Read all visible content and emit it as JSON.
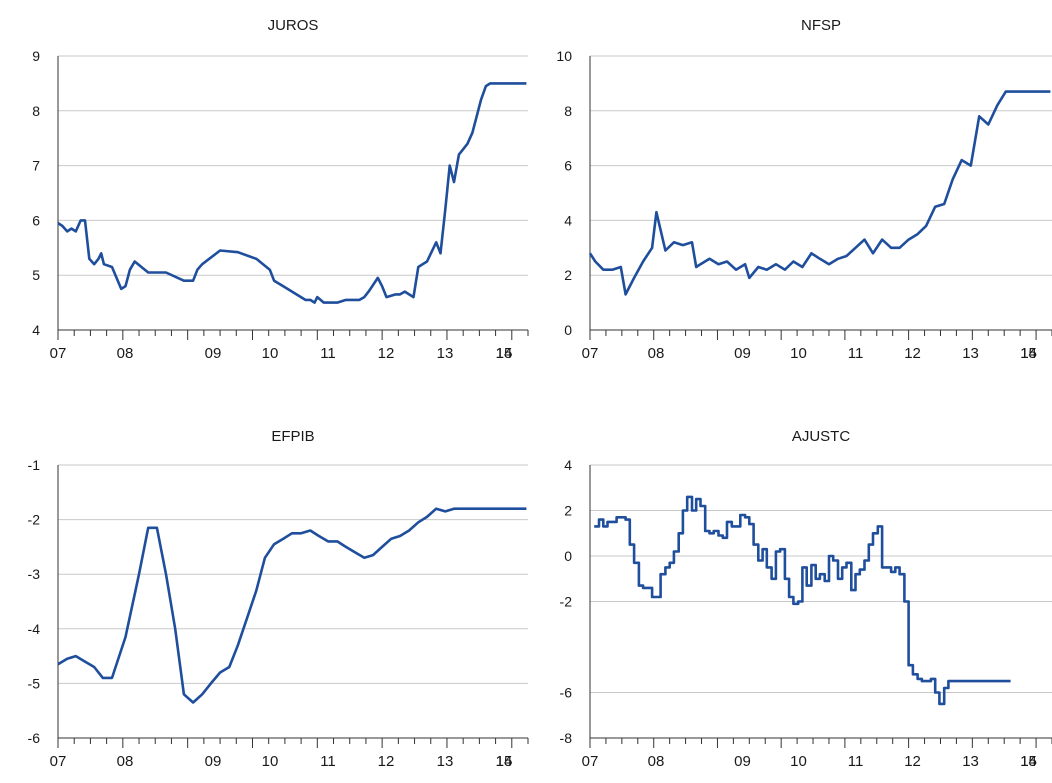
{
  "chart_data": [
    {
      "type": "line",
      "title": "JUROS",
      "ylim": [
        4,
        9
      ],
      "yticks": [
        "4",
        "5",
        "6",
        "7",
        "8",
        "9"
      ],
      "xlim": [
        2007.0,
        2015.7
      ],
      "xtick_labels": [
        {
          "label": "07",
          "x": 2007.0
        },
        {
          "label": "08",
          "x": 2007.5
        },
        {
          "label": "09",
          "x": 2008.25
        },
        {
          "label": "10",
          "x": 2009.0
        },
        {
          "label": "11",
          "x": 2010.0
        },
        {
          "label": "12",
          "x": 2011.0
        },
        {
          "label": "13",
          "x": 2012.0
        },
        {
          "label": "14",
          "x": 2013.0
        },
        {
          "label": "15",
          "x": 2014.0
        }
      ],
      "grid": "horizontal",
      "color": "#1f4e9c",
      "series": [
        {
          "x": [
            2007.0,
            2007.08,
            2007.17,
            2007.25,
            2007.33,
            2007.42,
            2007.5,
            2007.58,
            2007.67,
            2007.75,
            2007.8,
            2007.85,
            2008.0,
            2008.17,
            2008.25,
            2008.33,
            2008.42,
            2008.67,
            2008.75,
            2008.83,
            2009.0,
            2009.33,
            2009.5,
            2009.58,
            2009.67,
            2010.0,
            2010.33,
            2010.67,
            2010.92,
            2011.0,
            2011.17,
            2011.58,
            2011.67,
            2011.75,
            2011.8,
            2011.92,
            2012.0,
            2012.08,
            2012.17,
            2012.33,
            2012.58,
            2012.67,
            2012.75,
            2012.92,
            2013.0,
            2013.08,
            2013.25,
            2013.33,
            2013.42,
            2013.58,
            2013.67,
            2013.75,
            2013.83,
            2014.0,
            2014.08,
            2014.17,
            2014.25,
            2014.33,
            2014.42,
            2014.5,
            2014.58,
            2014.67,
            2014.75,
            2014.83,
            2014.92,
            2015.0,
            2015.08,
            2015.17,
            2015.25,
            2015.33,
            2015.42,
            2015.5,
            2015.58,
            2015.67
          ],
          "y": [
            5.95,
            5.9,
            5.8,
            5.85,
            5.8,
            6.0,
            6.0,
            5.3,
            5.2,
            5.3,
            5.4,
            5.2,
            5.15,
            4.75,
            4.8,
            5.1,
            5.25,
            5.05,
            5.05,
            5.05,
            5.05,
            4.9,
            4.9,
            5.1,
            5.2,
            5.45,
            5.42,
            5.3,
            5.1,
            4.9,
            4.8,
            4.55,
            4.55,
            4.5,
            4.6,
            4.5,
            4.5,
            4.5,
            4.5,
            4.55,
            4.55,
            4.6,
            4.7,
            4.95,
            4.8,
            4.6,
            4.65,
            4.65,
            4.7,
            4.6,
            5.15,
            5.2,
            5.25,
            5.6,
            5.4,
            6.2,
            7.0,
            6.7,
            7.2,
            7.3,
            7.4,
            7.6,
            7.9,
            8.2,
            8.45,
            8.5,
            8.5,
            8.5,
            8.5,
            8.5,
            8.5,
            8.5,
            8.5,
            8.5
          ]
        }
      ]
    },
    {
      "type": "line",
      "title": "NFSP",
      "ylim": [
        0,
        10
      ],
      "yticks": [
        "0",
        "2",
        "4",
        "6",
        "8",
        "10"
      ],
      "xlim": [
        2007.0,
        2015.7
      ],
      "xtick_labels": [
        {
          "label": "07",
          "x": 2007.0
        },
        {
          "label": "08",
          "x": 2007.5
        },
        {
          "label": "09",
          "x": 2008.25
        },
        {
          "label": "10",
          "x": 2009.0
        },
        {
          "label": "11",
          "x": 2010.0
        },
        {
          "label": "12",
          "x": 2011.0
        },
        {
          "label": "13",
          "x": 2012.0
        },
        {
          "label": "14",
          "x": 2013.0
        },
        {
          "label": "15",
          "x": 2014.0
        }
      ],
      "grid": "horizontal",
      "color": "#1f4e9c",
      "series": [
        {
          "x": [
            2007.0,
            2007.1,
            2007.25,
            2007.42,
            2007.58,
            2007.67,
            2007.83,
            2008.0,
            2008.17,
            2008.25,
            2008.42,
            2008.58,
            2008.75,
            2008.92,
            2009.0,
            2009.08,
            2009.25,
            2009.42,
            2009.58,
            2009.75,
            2009.92,
            2010.0,
            2010.17,
            2010.33,
            2010.5,
            2010.67,
            2010.83,
            2011.0,
            2011.17,
            2011.33,
            2011.5,
            2011.67,
            2011.83,
            2012.0,
            2012.17,
            2012.33,
            2012.5,
            2012.67,
            2012.83,
            2013.0,
            2013.17,
            2013.33,
            2013.5,
            2013.67,
            2013.83,
            2014.0,
            2014.17,
            2014.33,
            2014.5,
            2014.67,
            2014.83,
            2015.0,
            2015.17,
            2015.33,
            2015.5,
            2015.67
          ],
          "y": [
            2.8,
            2.5,
            2.2,
            2.2,
            2.3,
            1.3,
            1.9,
            2.5,
            3.0,
            4.3,
            2.9,
            3.2,
            3.1,
            3.2,
            2.3,
            2.4,
            2.6,
            2.4,
            2.5,
            2.2,
            2.4,
            1.9,
            2.3,
            2.2,
            2.4,
            2.2,
            2.5,
            2.3,
            2.8,
            2.6,
            2.4,
            2.6,
            2.7,
            3.0,
            3.3,
            2.8,
            3.3,
            3.0,
            3.0,
            3.3,
            3.5,
            3.8,
            4.5,
            4.6,
            5.5,
            6.2,
            6.0,
            7.8,
            7.5,
            8.2,
            8.7,
            8.7,
            8.7,
            8.7,
            8.7,
            8.7
          ]
        }
      ]
    },
    {
      "type": "line",
      "title": "EFPIB",
      "ylim": [
        -6,
        -1
      ],
      "yticks": [
        "-6",
        "-5",
        "-4",
        "-3",
        "-2",
        "-1"
      ],
      "xlim": [
        2007.0,
        2015.7
      ],
      "xtick_labels": [
        {
          "label": "07",
          "x": 2007.0
        },
        {
          "label": "08",
          "x": 2007.5
        },
        {
          "label": "09",
          "x": 2008.25
        },
        {
          "label": "10",
          "x": 2009.0
        },
        {
          "label": "11",
          "x": 2010.0
        },
        {
          "label": "12",
          "x": 2011.0
        },
        {
          "label": "13",
          "x": 2012.0
        },
        {
          "label": "14",
          "x": 2013.0
        },
        {
          "label": "15",
          "x": 2014.0
        }
      ],
      "grid": "horizontal",
      "color": "#1f4e9c",
      "series": [
        {
          "x": [
            2007.0,
            2007.17,
            2007.33,
            2007.5,
            2007.67,
            2007.83,
            2008.0,
            2008.25,
            2008.5,
            2008.67,
            2008.83,
            2009.0,
            2009.17,
            2009.33,
            2009.5,
            2009.67,
            2009.83,
            2010.0,
            2010.17,
            2010.33,
            2010.5,
            2010.67,
            2010.83,
            2011.0,
            2011.17,
            2011.33,
            2011.5,
            2011.67,
            2011.83,
            2012.0,
            2012.17,
            2012.33,
            2012.5,
            2012.67,
            2012.83,
            2013.0,
            2013.17,
            2013.33,
            2013.5,
            2013.67,
            2013.83,
            2014.0,
            2014.17,
            2014.33,
            2014.5,
            2014.67,
            2014.83,
            2015.0,
            2015.17,
            2015.33,
            2015.5,
            2015.67
          ],
          "y": [
            -4.65,
            -4.55,
            -4.5,
            -4.6,
            -4.7,
            -4.9,
            -4.9,
            -4.15,
            -3.0,
            -2.15,
            -2.15,
            -3.0,
            -4.0,
            -5.2,
            -5.35,
            -5.2,
            -5.0,
            -4.8,
            -4.7,
            -4.3,
            -3.8,
            -3.3,
            -2.7,
            -2.45,
            -2.35,
            -2.25,
            -2.25,
            -2.2,
            -2.3,
            -2.4,
            -2.4,
            -2.5,
            -2.6,
            -2.7,
            -2.65,
            -2.5,
            -2.35,
            -2.3,
            -2.2,
            -2.05,
            -1.95,
            -1.8,
            -1.85,
            -1.8,
            -1.8,
            -1.8,
            -1.8,
            -1.8,
            -1.8,
            -1.8,
            -1.8,
            -1.8
          ]
        }
      ]
    },
    {
      "type": "line",
      "title": "AJUSTC",
      "ylim": [
        -8,
        4
      ],
      "yticks": [
        "-8",
        "-6",
        "-2",
        "0",
        "2",
        "4"
      ],
      "ytick_values": [
        -8,
        -6,
        -2,
        0,
        2,
        4
      ],
      "xlim": [
        2007.0,
        2015.7
      ],
      "xtick_labels": [
        {
          "label": "07",
          "x": 2007.0
        },
        {
          "label": "08",
          "x": 2007.5
        },
        {
          "label": "09",
          "x": 2008.25
        },
        {
          "label": "10",
          "x": 2009.0
        },
        {
          "label": "11",
          "x": 2010.0
        },
        {
          "label": "12",
          "x": 2011.0
        },
        {
          "label": "13",
          "x": 2012.0
        },
        {
          "label": "14",
          "x": 2013.0
        },
        {
          "label": "15",
          "x": 2014.0
        }
      ],
      "grid": "horizontal",
      "color": "#1f4e9c",
      "series": [
        {
          "x": [
            2007.08,
            2007.17,
            2007.25,
            2007.33,
            2007.5,
            2007.67,
            2007.75,
            2007.83,
            2007.92,
            2008.0,
            2008.17,
            2008.33,
            2008.42,
            2008.5,
            2008.58,
            2008.67,
            2008.75,
            2008.83,
            2008.92,
            2009.0,
            2009.08,
            2009.17,
            2009.25,
            2009.33,
            2009.42,
            2009.5,
            2009.58,
            2009.67,
            2009.75,
            2009.83,
            2009.92,
            2010.0,
            2010.08,
            2010.17,
            2010.25,
            2010.33,
            2010.42,
            2010.5,
            2010.58,
            2010.67,
            2010.75,
            2010.83,
            2010.92,
            2011.0,
            2011.08,
            2011.17,
            2011.25,
            2011.33,
            2011.42,
            2011.5,
            2011.58,
            2011.67,
            2011.75,
            2011.83,
            2011.92,
            2012.0,
            2012.08,
            2012.17,
            2012.25,
            2012.33,
            2012.42,
            2012.5,
            2012.58,
            2012.67,
            2012.75,
            2012.83,
            2012.92,
            2013.0,
            2013.08,
            2013.17,
            2013.25,
            2013.33,
            2013.42,
            2013.5,
            2013.58,
            2013.67,
            2013.75,
            2013.83,
            2013.92,
            2014.0,
            2014.08,
            2014.17,
            2014.25,
            2014.33,
            2014.42,
            2014.5,
            2014.58,
            2014.67,
            2014.75,
            2014.83,
            2014.92
          ],
          "y": [
            1.3,
            1.6,
            1.3,
            1.5,
            1.7,
            1.6,
            0.5,
            -0.3,
            -1.3,
            -1.4,
            -1.8,
            -0.8,
            -0.5,
            -0.3,
            0.2,
            1.0,
            2.0,
            2.6,
            2.0,
            2.5,
            2.2,
            1.1,
            1.0,
            1.1,
            0.9,
            0.8,
            1.5,
            1.3,
            1.3,
            1.8,
            1.7,
            1.4,
            0.5,
            -0.2,
            0.3,
            -0.5,
            -1.0,
            0.2,
            0.3,
            -1.0,
            -1.8,
            -2.1,
            -2.0,
            -0.5,
            -1.3,
            -0.4,
            -1.0,
            -0.8,
            -1.1,
            0.0,
            -0.2,
            -1.0,
            -0.5,
            -0.3,
            -1.5,
            -0.8,
            -0.6,
            -0.2,
            0.5,
            1.0,
            1.3,
            -0.5,
            -0.5,
            -0.7,
            -0.5,
            -0.8,
            -2.0,
            -4.8,
            -5.2,
            -5.4,
            -5.5,
            -5.5,
            -5.4,
            -6.0,
            -6.5,
            -5.8,
            -5.5,
            -5.5,
            -5.5,
            -5.5,
            -5.5,
            -5.5,
            -5.5,
            -5.5,
            -5.5,
            -5.5,
            -5.5,
            -5.5,
            -5.5,
            -5.5,
            -5.5
          ]
        }
      ]
    }
  ]
}
